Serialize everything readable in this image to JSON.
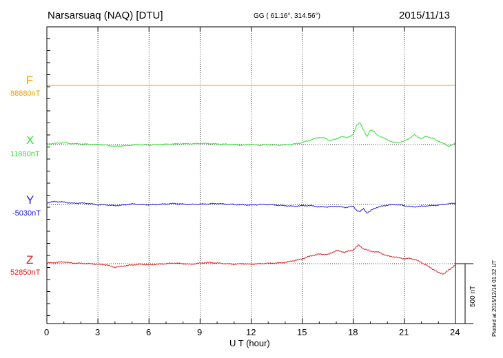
{
  "header": {
    "station": "Narsarsuaq (NAQ)  [DTU]",
    "coords": "GG ( 61.16°, 314.56°)",
    "date": "2015/11/13"
  },
  "footer": {
    "plotted": "Plotted at 2015/12/14 01:32 UT"
  },
  "chart_data": {
    "type": "line",
    "xlabel": "U T (hour)",
    "xlim": [
      0,
      24
    ],
    "xticks": [
      0,
      3,
      6,
      9,
      12,
      15,
      18,
      21,
      24
    ],
    "xtick_labels": [
      "0",
      "3",
      "6",
      "9",
      "12",
      "15",
      "18",
      "21",
      "24"
    ],
    "grid": "vertical dotted lines every 3 hours",
    "scale_bar": "500 nT",
    "series": [
      {
        "name": "F",
        "baseline_label": "88880nT",
        "color": "#f0a000",
        "x": [
          0,
          24
        ],
        "delta_nT": [
          0,
          0
        ]
      },
      {
        "name": "X",
        "baseline_label": "11880nT",
        "color": "#33dd33",
        "x": [
          0,
          0.5,
          1,
          1.5,
          2,
          2.5,
          3,
          3.5,
          4,
          4.5,
          5,
          5.5,
          6,
          6.5,
          7,
          7.5,
          8,
          8.5,
          9,
          9.5,
          10,
          10.5,
          11,
          11.5,
          12,
          12.5,
          13,
          13.5,
          14,
          14.5,
          15,
          15.5,
          16,
          16.3,
          16.6,
          17,
          17.3,
          17.6,
          18,
          18.2,
          18.4,
          18.6,
          18.8,
          19,
          19.2,
          19.4,
          19.7,
          20,
          20.3,
          20.6,
          21,
          21.3,
          21.6,
          22,
          22.3,
          22.6,
          23,
          23.3,
          23.6,
          24
        ],
        "delta_nT": [
          5,
          10,
          15,
          8,
          5,
          3,
          0,
          -5,
          -15,
          -10,
          -5,
          0,
          -5,
          0,
          3,
          5,
          8,
          6,
          10,
          8,
          5,
          3,
          0,
          -5,
          0,
          -5,
          0,
          -5,
          -3,
          5,
          15,
          40,
          60,
          55,
          35,
          45,
          70,
          55,
          85,
          160,
          185,
          120,
          65,
          125,
          110,
          80,
          60,
          40,
          20,
          15,
          30,
          55,
          80,
          50,
          70,
          55,
          30,
          10,
          -15,
          10
        ]
      },
      {
        "name": "Y",
        "baseline_label": "-5030nT",
        "color": "#2020dd",
        "x": [
          0,
          0.5,
          1,
          1.5,
          2,
          2.5,
          3,
          3.5,
          4,
          4.5,
          5,
          5.5,
          6,
          6.5,
          7,
          7.5,
          8,
          8.5,
          9,
          9.5,
          10,
          10.5,
          11,
          11.5,
          12,
          12.5,
          13,
          13.5,
          14,
          14.5,
          15,
          15.5,
          16,
          16.5,
          17,
          17.5,
          18,
          18.2,
          18.4,
          18.6,
          18.8,
          19,
          19.2,
          19.5,
          20,
          20.5,
          21,
          21.5,
          22,
          22.5,
          23,
          23.5,
          24
        ],
        "delta_nT": [
          15,
          25,
          20,
          10,
          12,
          8,
          -3,
          -3,
          -10,
          -5,
          5,
          0,
          -3,
          0,
          5,
          8,
          3,
          0,
          3,
          5,
          8,
          3,
          0,
          -3,
          -5,
          0,
          0,
          -5,
          -10,
          -15,
          -10,
          -10,
          -20,
          -20,
          -15,
          -25,
          -15,
          -50,
          -60,
          -35,
          -70,
          -55,
          -35,
          -20,
          -5,
          0,
          -10,
          -20,
          -15,
          -10,
          -5,
          5,
          10
        ]
      },
      {
        "name": "Z",
        "baseline_label": "52850nT",
        "color": "#dd2020",
        "x": [
          0,
          0.5,
          1,
          1.5,
          2,
          2.5,
          3,
          3.5,
          4,
          4.5,
          5,
          5.5,
          6,
          6.5,
          7,
          7.5,
          8,
          8.5,
          9,
          9.5,
          10,
          10.5,
          11,
          11.5,
          12,
          12.5,
          13,
          13.5,
          14,
          14.5,
          15,
          15.5,
          16,
          16.5,
          17,
          17.5,
          18,
          18.3,
          18.6,
          19,
          19.5,
          20,
          20.5,
          21,
          21.3,
          21.6,
          22,
          22.5,
          23,
          23.3,
          23.6,
          24
        ],
        "delta_nT": [
          5,
          10,
          15,
          5,
          3,
          0,
          -5,
          -10,
          -30,
          -20,
          -10,
          -5,
          -10,
          -5,
          0,
          5,
          0,
          -5,
          5,
          10,
          5,
          0,
          -5,
          0,
          -5,
          0,
          3,
          5,
          10,
          25,
          40,
          65,
          80,
          75,
          110,
          95,
          115,
          155,
          125,
          105,
          95,
          65,
          55,
          40,
          45,
          35,
          10,
          -30,
          -75,
          -85,
          -55,
          -10
        ]
      }
    ]
  }
}
